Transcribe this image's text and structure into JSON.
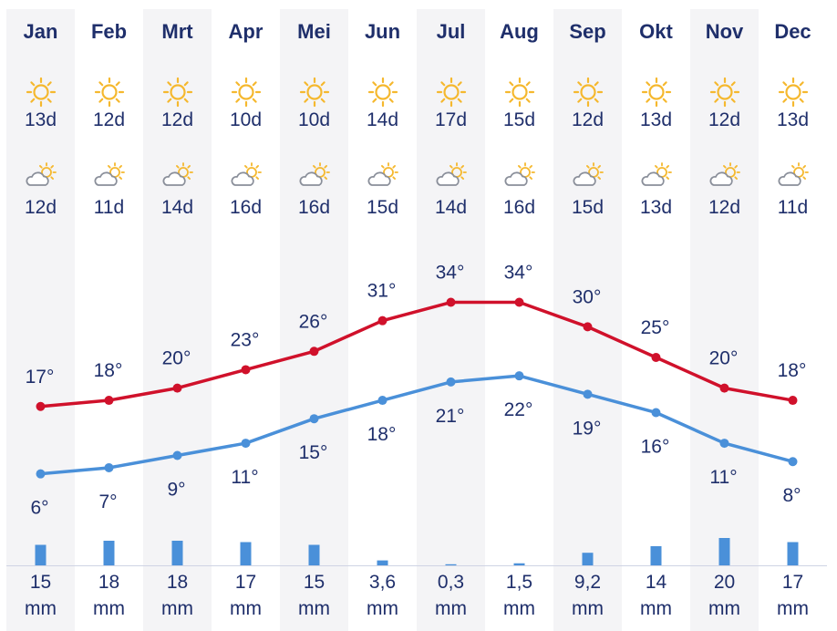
{
  "chart_data": {
    "type": "line",
    "categories": [
      "Jan",
      "Feb",
      "Mrt",
      "Apr",
      "Mei",
      "Jun",
      "Jul",
      "Aug",
      "Sep",
      "Okt",
      "Nov",
      "Dec"
    ],
    "sunny_days": [
      "13d",
      "12d",
      "12d",
      "10d",
      "10d",
      "14d",
      "17d",
      "15d",
      "12d",
      "13d",
      "12d",
      "13d"
    ],
    "cloudy_days": [
      "12d",
      "11d",
      "14d",
      "16d",
      "16d",
      "15d",
      "14d",
      "16d",
      "15d",
      "13d",
      "12d",
      "11d"
    ],
    "series": [
      {
        "name": "",
        "values": [
          17,
          18,
          20,
          23,
          26,
          31,
          34,
          34,
          30,
          25,
          20,
          18
        ],
        "labels": [
          "17°",
          "18°",
          "20°",
          "23°",
          "26°",
          "31°",
          "34°",
          "34°",
          "30°",
          "25°",
          "20°",
          "18°"
        ],
        "color": "#d0112b"
      },
      {
        "name": "",
        "values": [
          6,
          7,
          9,
          11,
          15,
          18,
          21,
          22,
          19,
          16,
          11,
          8
        ],
        "labels": [
          "6°",
          "7°",
          "9°",
          "11°",
          "15°",
          "18°",
          "21°",
          "22°",
          "19°",
          "16°",
          "11°",
          "8°"
        ],
        "color": "#4a90d9"
      }
    ],
    "precipitation": {
      "values": [
        15,
        18,
        18,
        17,
        15,
        3.6,
        0.3,
        1.5,
        9.2,
        14,
        20,
        17
      ],
      "labels": [
        "15",
        "18",
        "18",
        "17",
        "15",
        "3,6",
        "0,3",
        "1,5",
        "9,2",
        "14",
        "20",
        "17"
      ],
      "unit": "mm",
      "color": "#4a90d9"
    },
    "icons": {
      "sunny": "sun-icon",
      "cloudy": "partly-cloudy-icon"
    },
    "colors": {
      "text": "#1f2f6b",
      "column_shade": "#f4f4f6",
      "sun": "#f5b82e",
      "cloud": "#8a8f9a"
    },
    "ylim": [
      0,
      40
    ]
  }
}
